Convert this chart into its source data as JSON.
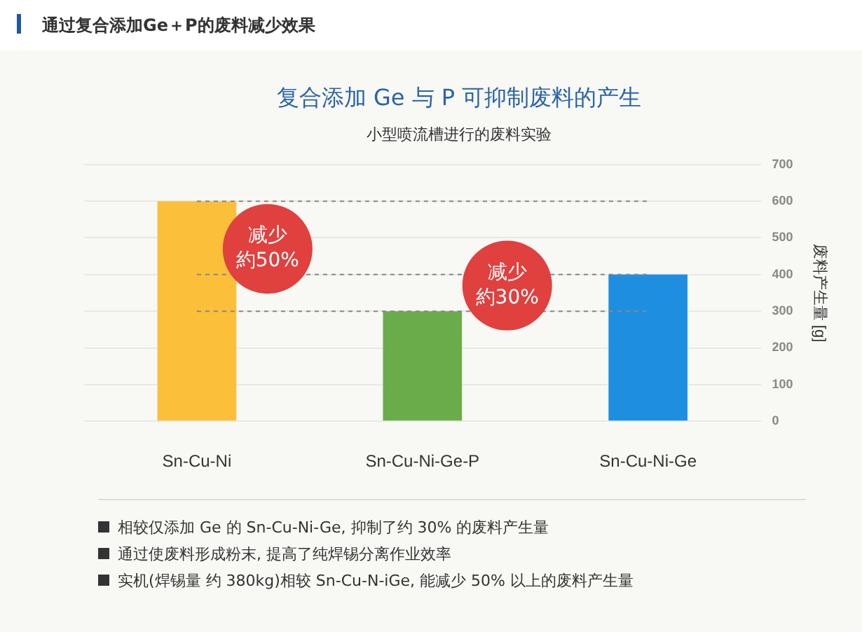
{
  "chart_data": {
    "type": "bar",
    "title": "复合添加 Ge 与 P 可抑制废料的产生",
    "subtitle": "小型喷流槽进行的废料实验",
    "ylabel": "废料产生量 [g]",
    "categories": [
      "Sn-Cu-Ni",
      "Sn-Cu-Ni-Ge-P",
      "Sn-Cu-Ni-Ge"
    ],
    "values": [
      600,
      300,
      400
    ],
    "colors": [
      "#fbbf3a",
      "#6aac4a",
      "#1e8fe0"
    ],
    "ylim": [
      0,
      700
    ],
    "yticks": [
      0,
      100,
      200,
      300,
      400,
      500,
      600,
      700
    ],
    "grid": "y",
    "legend": false,
    "ref_lines": [
      {
        "axis": "y",
        "value": 600,
        "color": "#888888",
        "line_style": "dashed"
      },
      {
        "axis": "y",
        "value": 300,
        "color": "#888888",
        "line_style": "dashed"
      },
      {
        "axis": "y",
        "value": 400,
        "color": "#888888",
        "line_style": "dashed"
      }
    ],
    "annotations": [
      "通过复合添加Ge＋P的废料减少效果",
      "减少",
      "約50%",
      "减少",
      "約30%",
      "相较仅添加 Ge 的 Sn-Cu-Ni-Ge, 抑制了约 30% 的废料产生量",
      "通过使废料形成粉末, 提高了纯焊锡分离作业效率",
      "实机(焊锡量 约 380kg)相较 Sn-Cu-N-iGe, 能减少 50% 以上的废料产生量"
    ]
  }
}
